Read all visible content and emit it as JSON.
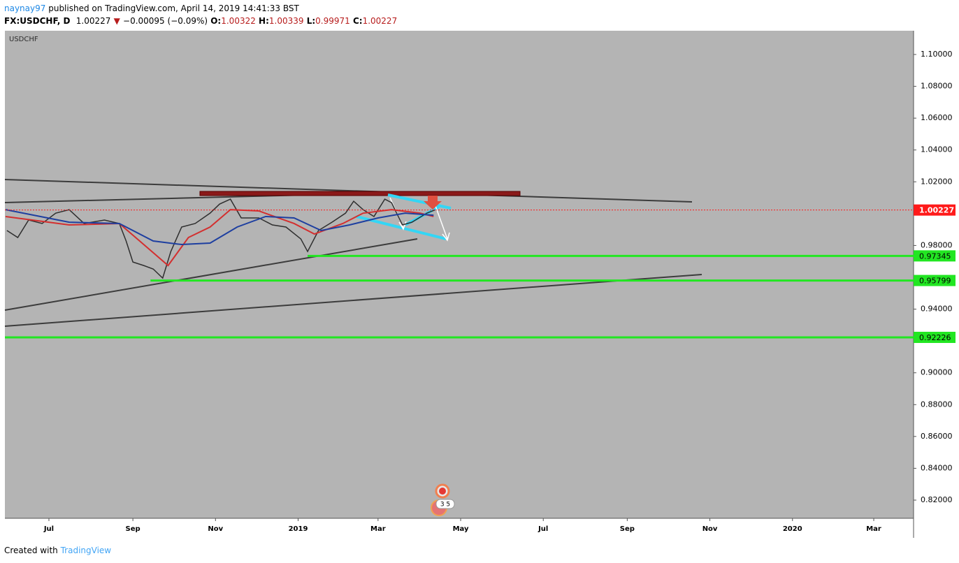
{
  "header": {
    "author": "naynay97",
    "published": "published on TradingView.com, April 14, 2019 14:41:33 BST",
    "symbol": "FX:USDCHF, D",
    "last": "1.00227",
    "arrow": "▼",
    "change": "−0.00095 (−0.09%)",
    "o_label": "O:",
    "o": "1.00322",
    "h_label": "H:",
    "h": "1.00339",
    "l_label": "L:",
    "l": "0.99971",
    "c_label": "C:",
    "c": "1.00227"
  },
  "footer": {
    "created": "Created with",
    "brand": "TradingView"
  },
  "chart_data": {
    "type": "line",
    "x": [
      -31,
      -23,
      -15,
      -5,
      5,
      15,
      26,
      41,
      52,
      57,
      62,
      70,
      77,
      84,
      90,
      98,
      108,
      119,
      126,
      134,
      142,
      155,
      165,
      175,
      186,
      191,
      199,
      209,
      219,
      225,
      232,
      240,
      248,
      253,
      261,
      268,
      279,
      285
    ],
    "series": [
      {
        "name": "USDCHF",
        "color": "#2e2e2e",
        "values": [
          0.9894,
          0.985,
          0.996,
          0.9938,
          1.0003,
          1.0025,
          0.9938,
          0.996,
          0.9938,
          0.9828,
          0.9696,
          0.9674,
          0.9652,
          0.9595,
          0.9762,
          0.9916,
          0.9938,
          1.0003,
          1.006,
          1.0091,
          0.9973,
          0.9973,
          0.9929,
          0.9916,
          0.9841,
          0.9762,
          0.9894,
          0.9946,
          1.0003,
          1.0078,
          1.0025,
          0.9982,
          1.0091,
          1.0069,
          0.9929,
          0.9946,
          1.0003,
          1.0023
        ]
      },
      {
        "color": "#d32f2f",
        "x": [
          -32,
          15,
          52,
          67,
          88,
          103,
          119,
          134,
          155,
          181,
          196,
          217,
          232,
          253,
          274,
          284
        ],
        "values": [
          0.9982,
          0.9929,
          0.9938,
          0.9828,
          0.9674,
          0.985,
          0.9916,
          1.0025,
          1.0017,
          0.9938,
          0.9872,
          0.9938,
          1.0003,
          1.0025,
          1.0003,
          0.9982
        ]
      },
      {
        "color": "#1e3fa0",
        "x": [
          -32,
          15,
          52,
          77,
          98,
          119,
          139,
          160,
          181,
          201,
          222,
          243,
          263,
          284
        ],
        "values": [
          1.0025,
          0.9946,
          0.9938,
          0.9828,
          0.9806,
          0.9815,
          0.9916,
          0.9982,
          0.9973,
          0.9894,
          0.9929,
          0.9973,
          1.0003,
          0.999
        ]
      }
    ],
    "levels": [
      {
        "value": 1.00227,
        "color": "#ff1a1a",
        "from": -32.5,
        "dotted": true
      },
      {
        "value": 0.97345,
        "color": "#22e622",
        "from": 191
      },
      {
        "value": 0.95799,
        "color": "#22e622",
        "from": 75
      },
      {
        "value": 0.92226,
        "color": "#22e622",
        "from": -32.5
      }
    ],
    "xlim": [
      -32.5,
      638.4
    ],
    "xticks": [
      {
        "value": 0,
        "label": "Jul"
      },
      {
        "value": 62,
        "label": "Sep"
      },
      {
        "value": 123,
        "label": "Nov"
      },
      {
        "value": 184,
        "label": "2019"
      },
      {
        "value": 243,
        "label": "Mar"
      },
      {
        "value": 304,
        "label": "May"
      },
      {
        "value": 365,
        "label": "Jul"
      },
      {
        "value": 427,
        "label": "Sep"
      },
      {
        "value": 488,
        "label": "Nov"
      },
      {
        "value": 549,
        "label": "2020"
      },
      {
        "value": 609,
        "label": "Mar"
      }
    ],
    "ylim": [
      0.80858,
      1.11492
    ],
    "yticks": [
      {
        "value": 1.1,
        "label": "1.10000"
      },
      {
        "value": 1.08,
        "label": "1.08000"
      },
      {
        "value": 1.06,
        "label": "1.06000"
      },
      {
        "value": 1.04,
        "label": "1.04000"
      },
      {
        "value": 1.02,
        "label": "1.02000"
      },
      {
        "value": 0.98,
        "label": "0.98000"
      },
      {
        "value": 0.94,
        "label": "0.94000"
      },
      {
        "value": 0.9,
        "label": "0.90000"
      },
      {
        "value": 0.88,
        "label": "0.88000"
      },
      {
        "value": 0.86,
        "label": "0.86000"
      },
      {
        "value": 0.84,
        "label": "0.84000"
      },
      {
        "value": 0.82,
        "label": "0.82000"
      }
    ],
    "background": "#b4b4b4"
  }
}
